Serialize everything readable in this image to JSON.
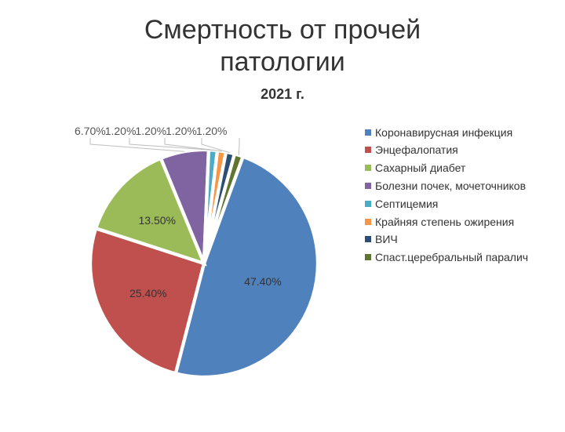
{
  "title_line1": "Смертность от прочей",
  "title_line2": "патологии",
  "title_fontsize": 34,
  "subtitle": "2021 г.",
  "subtitle_fontsize": 18,
  "chart": {
    "type": "pie",
    "background_color": "#ffffff",
    "label_fontsize": 14,
    "top_label_fontsize": 14,
    "legend_fontsize": 14,
    "start_angle_deg": 20,
    "slices": [
      {
        "name": "Коронавирусная инфекция",
        "value": 47.4,
        "color": "#4f81bd",
        "label": "47.40%",
        "label_in_pie": true
      },
      {
        "name": "Энцефалопатия",
        "value": 25.4,
        "color": "#c0504d",
        "label": "25.40%",
        "label_in_pie": true
      },
      {
        "name": "Сахарный диабет",
        "value": 13.5,
        "color": "#9bbb59",
        "label": "13.50%",
        "label_in_pie": true
      },
      {
        "name": "Болезни почек, мочеточников",
        "value": 6.7,
        "color": "#8064a2",
        "label": "6.70%",
        "label_in_pie": false
      },
      {
        "name": "Септицемия",
        "value": 1.2,
        "color": "#4bacc6",
        "label": "1.20%",
        "label_in_pie": false
      },
      {
        "name": "Крайняя степень ожирения",
        "value": 1.2,
        "color": "#f79646",
        "label": "1.20%",
        "label_in_pie": false
      },
      {
        "name": "ВИЧ",
        "value": 1.2,
        "color": "#2c4d75",
        "label": "1.20%",
        "label_in_pie": false
      },
      {
        "name": "Спаст.церебральный паралич",
        "value": 1.2,
        "color": "#5f7530",
        "label": "1.20%",
        "label_in_pie": false
      }
    ],
    "slice_border_color": "#ffffff",
    "slice_border_width": 1.5,
    "leader_line_color": "#bfbfbf",
    "leader_line_width": 1
  }
}
